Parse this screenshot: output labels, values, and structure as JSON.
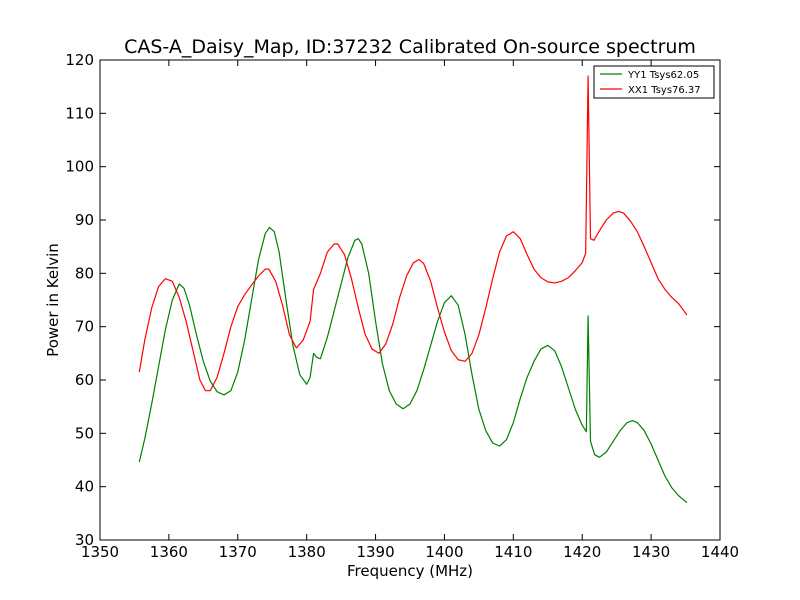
{
  "chart_data": {
    "type": "line",
    "title": "CAS-A_Daisy_Map, ID:37232 Calibrated On-source spectrum",
    "xlabel": "Frequency (MHz)",
    "ylabel": "Power in Kelvin",
    "xlim": [
      1350,
      1440
    ],
    "ylim": [
      30,
      120
    ],
    "xticks": [
      "1350",
      "1360",
      "1370",
      "1380",
      "1390",
      "1400",
      "1410",
      "1420",
      "1430",
      "1440"
    ],
    "yticks": [
      "30",
      "40",
      "50",
      "60",
      "70",
      "80",
      "90",
      "100",
      "110",
      "120"
    ],
    "grid": false,
    "legend_position": "top-right",
    "series": [
      {
        "name": "YY1 Tsys62.05",
        "color": "#008000",
        "points": [
          [
            1355.7,
            44.6
          ],
          [
            1356.5,
            49.0
          ],
          [
            1357.5,
            55.5
          ],
          [
            1358.5,
            62.5
          ],
          [
            1359.5,
            69.5
          ],
          [
            1360.5,
            75.0
          ],
          [
            1361.5,
            78.0
          ],
          [
            1362.2,
            77.2
          ],
          [
            1363.0,
            74.0
          ],
          [
            1364.0,
            68.5
          ],
          [
            1365.0,
            63.5
          ],
          [
            1366.0,
            59.8
          ],
          [
            1367.0,
            57.8
          ],
          [
            1368.0,
            57.2
          ],
          [
            1369.0,
            58.0
          ],
          [
            1370.0,
            61.5
          ],
          [
            1371.0,
            67.5
          ],
          [
            1372.0,
            75.0
          ],
          [
            1373.0,
            82.5
          ],
          [
            1374.0,
            87.5
          ],
          [
            1374.6,
            88.6
          ],
          [
            1375.3,
            87.8
          ],
          [
            1376.0,
            84.0
          ],
          [
            1377.0,
            75.0
          ],
          [
            1378.0,
            66.5
          ],
          [
            1379.0,
            61.0
          ],
          [
            1380.0,
            59.2
          ],
          [
            1380.5,
            60.5
          ],
          [
            1381.0,
            65.0
          ],
          [
            1381.5,
            64.2
          ],
          [
            1382.0,
            64.0
          ],
          [
            1383.0,
            68.0
          ],
          [
            1384.0,
            73.0
          ],
          [
            1385.0,
            78.0
          ],
          [
            1386.0,
            83.0
          ],
          [
            1387.0,
            86.2
          ],
          [
            1387.5,
            86.5
          ],
          [
            1388.0,
            85.5
          ],
          [
            1389.0,
            80.0
          ],
          [
            1390.0,
            71.0
          ],
          [
            1391.0,
            63.0
          ],
          [
            1392.0,
            58.0
          ],
          [
            1393.0,
            55.5
          ],
          [
            1394.0,
            54.6
          ],
          [
            1395.0,
            55.5
          ],
          [
            1396.0,
            58.0
          ],
          [
            1397.0,
            62.0
          ],
          [
            1398.0,
            66.5
          ],
          [
            1399.0,
            71.0
          ],
          [
            1400.0,
            74.5
          ],
          [
            1401.0,
            75.8
          ],
          [
            1402.0,
            74.0
          ],
          [
            1403.0,
            68.5
          ],
          [
            1404.0,
            61.0
          ],
          [
            1405.0,
            54.5
          ],
          [
            1406.0,
            50.5
          ],
          [
            1407.0,
            48.2
          ],
          [
            1408.0,
            47.6
          ],
          [
            1409.0,
            48.8
          ],
          [
            1410.0,
            52.0
          ],
          [
            1411.0,
            56.5
          ],
          [
            1412.0,
            60.5
          ],
          [
            1413.0,
            63.5
          ],
          [
            1414.0,
            65.8
          ],
          [
            1415.0,
            66.5
          ],
          [
            1416.0,
            65.5
          ],
          [
            1417.0,
            62.5
          ],
          [
            1418.0,
            58.5
          ],
          [
            1419.0,
            54.5
          ],
          [
            1420.0,
            51.5
          ],
          [
            1420.6,
            50.3
          ],
          [
            1420.85,
            72.0
          ],
          [
            1421.2,
            48.5
          ],
          [
            1421.8,
            46.0
          ],
          [
            1422.5,
            45.5
          ],
          [
            1423.5,
            46.5
          ],
          [
            1424.5,
            48.5
          ],
          [
            1425.5,
            50.5
          ],
          [
            1426.5,
            52.0
          ],
          [
            1427.3,
            52.4
          ],
          [
            1428.0,
            52.0
          ],
          [
            1429.0,
            50.5
          ],
          [
            1430.0,
            48.0
          ],
          [
            1431.0,
            45.0
          ],
          [
            1432.0,
            42.0
          ],
          [
            1433.0,
            39.8
          ],
          [
            1434.0,
            38.3
          ],
          [
            1435.2,
            37.0
          ]
        ]
      },
      {
        "name": "XX1 Tsys76.37",
        "color": "#ff0000",
        "points": [
          [
            1355.7,
            61.5
          ],
          [
            1356.5,
            67.5
          ],
          [
            1357.5,
            73.5
          ],
          [
            1358.5,
            77.5
          ],
          [
            1359.5,
            79.0
          ],
          [
            1360.5,
            78.5
          ],
          [
            1361.5,
            75.5
          ],
          [
            1362.5,
            71.0
          ],
          [
            1363.5,
            65.5
          ],
          [
            1364.5,
            60.0
          ],
          [
            1365.3,
            58.0
          ],
          [
            1366.0,
            58.0
          ],
          [
            1367.0,
            60.5
          ],
          [
            1368.0,
            65.0
          ],
          [
            1369.0,
            70.0
          ],
          [
            1370.0,
            73.8
          ],
          [
            1371.0,
            76.0
          ],
          [
            1372.0,
            77.8
          ],
          [
            1373.0,
            79.5
          ],
          [
            1374.0,
            80.8
          ],
          [
            1374.5,
            80.8
          ],
          [
            1375.5,
            78.5
          ],
          [
            1376.5,
            74.0
          ],
          [
            1377.5,
            68.5
          ],
          [
            1378.5,
            66.0
          ],
          [
            1379.5,
            67.5
          ],
          [
            1380.5,
            71.0
          ],
          [
            1381.0,
            77.0
          ],
          [
            1382.0,
            80.0
          ],
          [
            1383.0,
            84.0
          ],
          [
            1384.0,
            85.5
          ],
          [
            1384.5,
            85.5
          ],
          [
            1385.5,
            83.5
          ],
          [
            1386.5,
            79.0
          ],
          [
            1387.5,
            73.5
          ],
          [
            1388.5,
            68.5
          ],
          [
            1389.5,
            65.8
          ],
          [
            1390.5,
            65.0
          ],
          [
            1391.5,
            66.8
          ],
          [
            1392.5,
            70.5
          ],
          [
            1393.5,
            75.5
          ],
          [
            1394.5,
            79.5
          ],
          [
            1395.5,
            82.0
          ],
          [
            1396.3,
            82.6
          ],
          [
            1397.0,
            81.8
          ],
          [
            1398.0,
            78.5
          ],
          [
            1399.0,
            73.5
          ],
          [
            1400.0,
            69.0
          ],
          [
            1401.0,
            65.5
          ],
          [
            1402.0,
            63.8
          ],
          [
            1403.0,
            63.5
          ],
          [
            1404.0,
            65.0
          ],
          [
            1405.0,
            68.5
          ],
          [
            1406.0,
            73.5
          ],
          [
            1407.0,
            79.0
          ],
          [
            1408.0,
            84.0
          ],
          [
            1409.0,
            87.0
          ],
          [
            1410.0,
            87.8
          ],
          [
            1411.0,
            86.5
          ],
          [
            1412.0,
            83.5
          ],
          [
            1413.0,
            80.8
          ],
          [
            1414.0,
            79.2
          ],
          [
            1415.0,
            78.4
          ],
          [
            1416.0,
            78.2
          ],
          [
            1417.0,
            78.5
          ],
          [
            1418.0,
            79.2
          ],
          [
            1419.0,
            80.5
          ],
          [
            1420.0,
            82.0
          ],
          [
            1420.5,
            83.8
          ],
          [
            1420.85,
            117.0
          ],
          [
            1421.2,
            86.5
          ],
          [
            1421.7,
            86.2
          ],
          [
            1422.5,
            88.0
          ],
          [
            1423.5,
            90.0
          ],
          [
            1424.5,
            91.3
          ],
          [
            1425.3,
            91.6
          ],
          [
            1426.0,
            91.3
          ],
          [
            1427.0,
            89.8
          ],
          [
            1428.0,
            87.8
          ],
          [
            1429.0,
            85.0
          ],
          [
            1430.0,
            82.0
          ],
          [
            1431.0,
            79.0
          ],
          [
            1432.0,
            77.0
          ],
          [
            1433.0,
            75.5
          ],
          [
            1434.0,
            74.3
          ],
          [
            1435.2,
            72.2
          ]
        ]
      }
    ]
  }
}
